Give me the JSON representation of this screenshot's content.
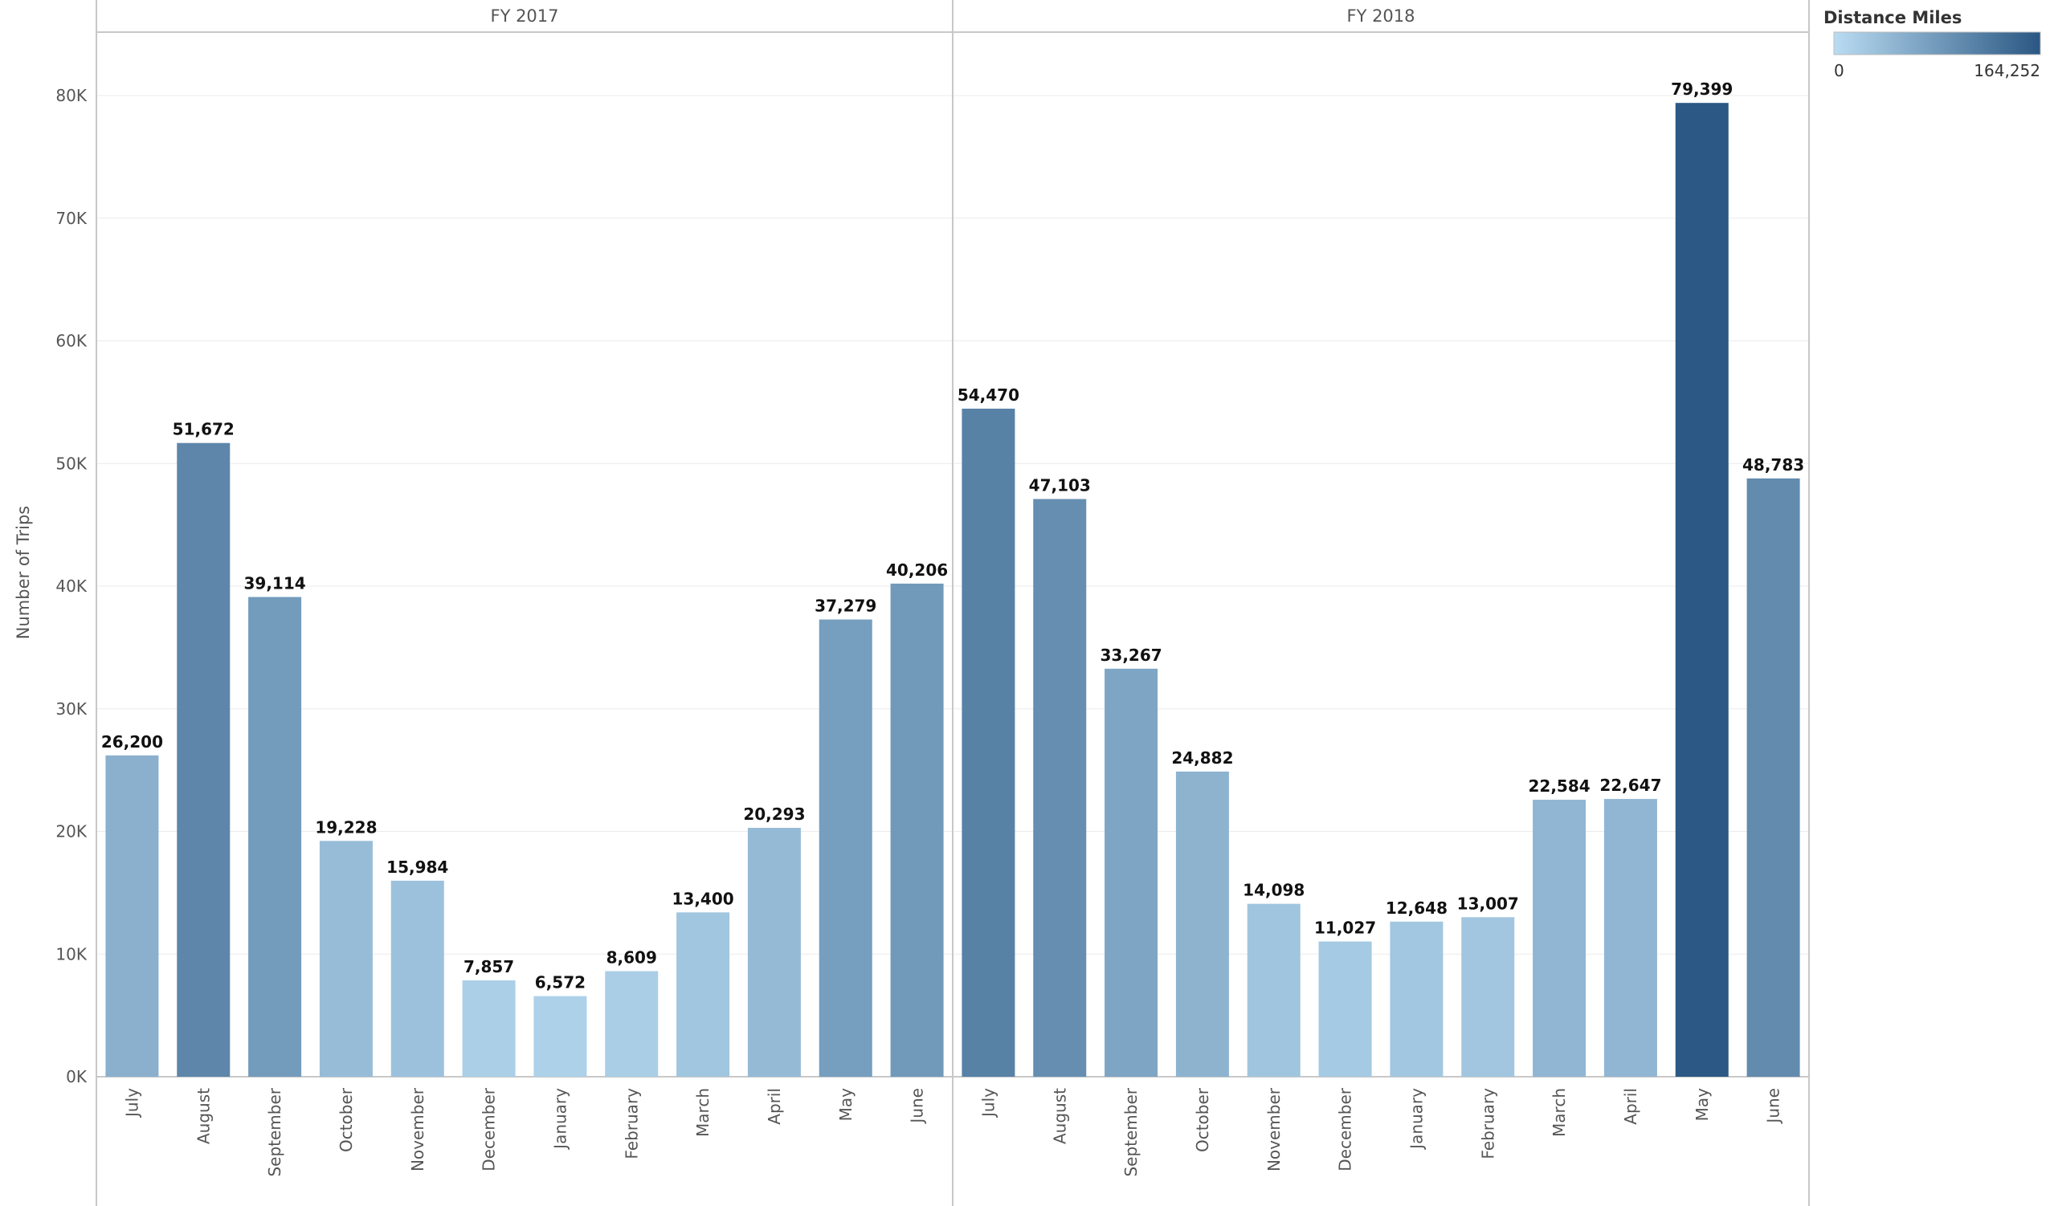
{
  "chart_data": {
    "type": "bar",
    "ylabel": "Number of Trips",
    "ylim": [
      0,
      85000
    ],
    "yticks": [
      0,
      10000,
      20000,
      30000,
      40000,
      50000,
      60000,
      70000,
      80000
    ],
    "ytick_labels": [
      "0K",
      "10K",
      "20K",
      "30K",
      "40K",
      "50K",
      "60K",
      "70K",
      "80K"
    ],
    "grid": true,
    "categories": [
      "July",
      "August",
      "September",
      "October",
      "November",
      "December",
      "January",
      "February",
      "March",
      "April",
      "May",
      "June"
    ],
    "panels": [
      {
        "label": "FY 2017",
        "values": [
          26200,
          51672,
          39114,
          19228,
          15984,
          7857,
          6572,
          8609,
          13400,
          20293,
          37279,
          40206
        ],
        "labels": [
          "26,200",
          "51,672",
          "39,114",
          "19,228",
          "15,984",
          "7,857",
          "6,572",
          "8,609",
          "13,400",
          "20,293",
          "37,279",
          "40,206"
        ]
      },
      {
        "label": "FY 2018",
        "values": [
          54470,
          47103,
          33267,
          24882,
          14098,
          11027,
          12648,
          13007,
          22584,
          22647,
          79399,
          48783
        ],
        "labels": [
          "54,470",
          "47,103",
          "33,267",
          "24,882",
          "14,098",
          "11,027",
          "12,648",
          "13,007",
          "22,584",
          "22,647",
          "79,399",
          "48,783"
        ]
      }
    ],
    "color_legend": {
      "title": "Distance Miles",
      "min_label": "0",
      "max_label": "164,252",
      "color_min": "#b9dcf2",
      "color_max": "#2a5783"
    }
  }
}
